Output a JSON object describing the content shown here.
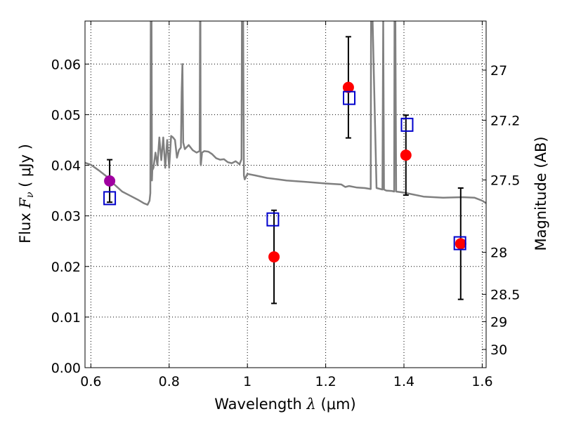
{
  "chart_data": {
    "type": "scatter",
    "x_label_prefix": "Wavelength  ",
    "x_label_symbol": "λ",
    "x_label_unit": " (μm)",
    "y_label_prefix": "Flux  ",
    "y_label_symbol": "F",
    "y_label_subscript": "ν",
    "y_label_unit": "  ( μJy )",
    "y2_label": "Magnitude (AB)",
    "xlim": [
      0.585,
      1.61
    ],
    "ylim": [
      0.0,
      0.0685
    ],
    "x_ticks": [
      0.6,
      0.8,
      1.0,
      1.2,
      1.4,
      1.6
    ],
    "x_tick_labels": [
      "0.6",
      "0.8",
      "1",
      "1.2",
      "1.4",
      "1.6"
    ],
    "y_ticks": [
      0.0,
      0.01,
      0.02,
      0.03,
      0.04,
      0.05,
      0.06
    ],
    "y_tick_labels": [
      "0.00",
      "0.01",
      "0.02",
      "0.03",
      "0.04",
      "0.05",
      "0.06"
    ],
    "y2_ticks": [
      {
        "flux": 0.0588,
        "label": "27"
      },
      {
        "flux": 0.0489,
        "label": "27.2"
      },
      {
        "flux": 0.0371,
        "label": "27.5"
      },
      {
        "flux": 0.0228,
        "label": "28"
      },
      {
        "flux": 0.0145,
        "label": "28.5"
      },
      {
        "flux": 0.0091,
        "label": "29"
      },
      {
        "flux": 0.0036,
        "label": "30"
      }
    ],
    "grid": true,
    "colors": {
      "model": "#808080",
      "observed": "#ff0000",
      "observed_first": "#a000a0",
      "model_points": "#0000cc",
      "errorbar": "#000000"
    },
    "series": [
      {
        "name": "model spectrum",
        "kind": "line",
        "x": [
          0.585,
          0.6,
          0.62,
          0.64,
          0.66,
          0.68,
          0.7,
          0.72,
          0.735,
          0.745,
          0.75,
          0.752,
          0.753,
          0.754,
          0.755,
          0.756,
          0.757,
          0.76,
          0.765,
          0.77,
          0.775,
          0.78,
          0.785,
          0.79,
          0.795,
          0.8,
          0.805,
          0.81,
          0.815,
          0.82,
          0.825,
          0.83,
          0.832,
          0.834,
          0.836,
          0.84,
          0.85,
          0.86,
          0.87,
          0.878,
          0.879,
          0.8795,
          0.88,
          0.8805,
          0.881,
          0.884,
          0.89,
          0.9,
          0.91,
          0.92,
          0.93,
          0.94,
          0.95,
          0.96,
          0.97,
          0.98,
          0.985,
          0.986,
          0.987,
          0.989,
          0.991,
          0.993,
          1.0,
          1.02,
          1.05,
          1.08,
          1.1,
          1.15,
          1.2,
          1.24,
          1.25,
          1.26,
          1.28,
          1.3,
          1.315,
          1.316,
          1.318,
          1.32,
          1.33,
          1.345,
          1.347,
          1.349,
          1.355,
          1.37,
          1.375,
          1.376,
          1.378,
          1.38,
          1.4,
          1.45,
          1.5,
          1.55,
          1.58,
          1.6,
          1.61
        ],
        "y": [
          0.0405,
          0.0401,
          0.039,
          0.0378,
          0.0362,
          0.0348,
          0.034,
          0.0332,
          0.0325,
          0.0322,
          0.033,
          0.0345,
          0.0685,
          0.0685,
          0.0685,
          0.037,
          0.039,
          0.0395,
          0.0425,
          0.04,
          0.0455,
          0.041,
          0.0455,
          0.0395,
          0.045,
          0.0395,
          0.0458,
          0.0455,
          0.045,
          0.0415,
          0.043,
          0.0435,
          0.0545,
          0.06,
          0.0445,
          0.0432,
          0.044,
          0.043,
          0.0425,
          0.0428,
          0.0685,
          0.0685,
          0.0685,
          0.0405,
          0.04,
          0.0425,
          0.0428,
          0.0427,
          0.0422,
          0.0414,
          0.0411,
          0.0412,
          0.0406,
          0.0404,
          0.0408,
          0.0402,
          0.0412,
          0.0685,
          0.0685,
          0.0685,
          0.038,
          0.0372,
          0.0383,
          0.038,
          0.0375,
          0.0372,
          0.037,
          0.0367,
          0.0364,
          0.0362,
          0.0357,
          0.0359,
          0.0356,
          0.0355,
          0.0353,
          0.0685,
          0.0685,
          0.0685,
          0.0355,
          0.0352,
          0.0685,
          0.0352,
          0.035,
          0.0349,
          0.0348,
          0.0685,
          0.0685,
          0.0348,
          0.0346,
          0.0338,
          0.0336,
          0.0337,
          0.0336,
          0.033,
          0.0325
        ]
      },
      {
        "name": "observed fluxes",
        "kind": "points",
        "x": [
          0.648,
          1.068,
          1.258,
          1.405,
          1.545
        ],
        "y": [
          0.0369,
          0.0219,
          0.0554,
          0.042,
          0.0245
        ],
        "yerr": [
          0.0042,
          0.0092,
          0.01,
          0.0079,
          0.011
        ]
      },
      {
        "name": "model fluxes",
        "kind": "squares",
        "x": [
          0.648,
          1.065,
          1.26,
          1.408,
          1.543
        ],
        "y": [
          0.0335,
          0.0293,
          0.0533,
          0.048,
          0.0246
        ]
      }
    ]
  }
}
